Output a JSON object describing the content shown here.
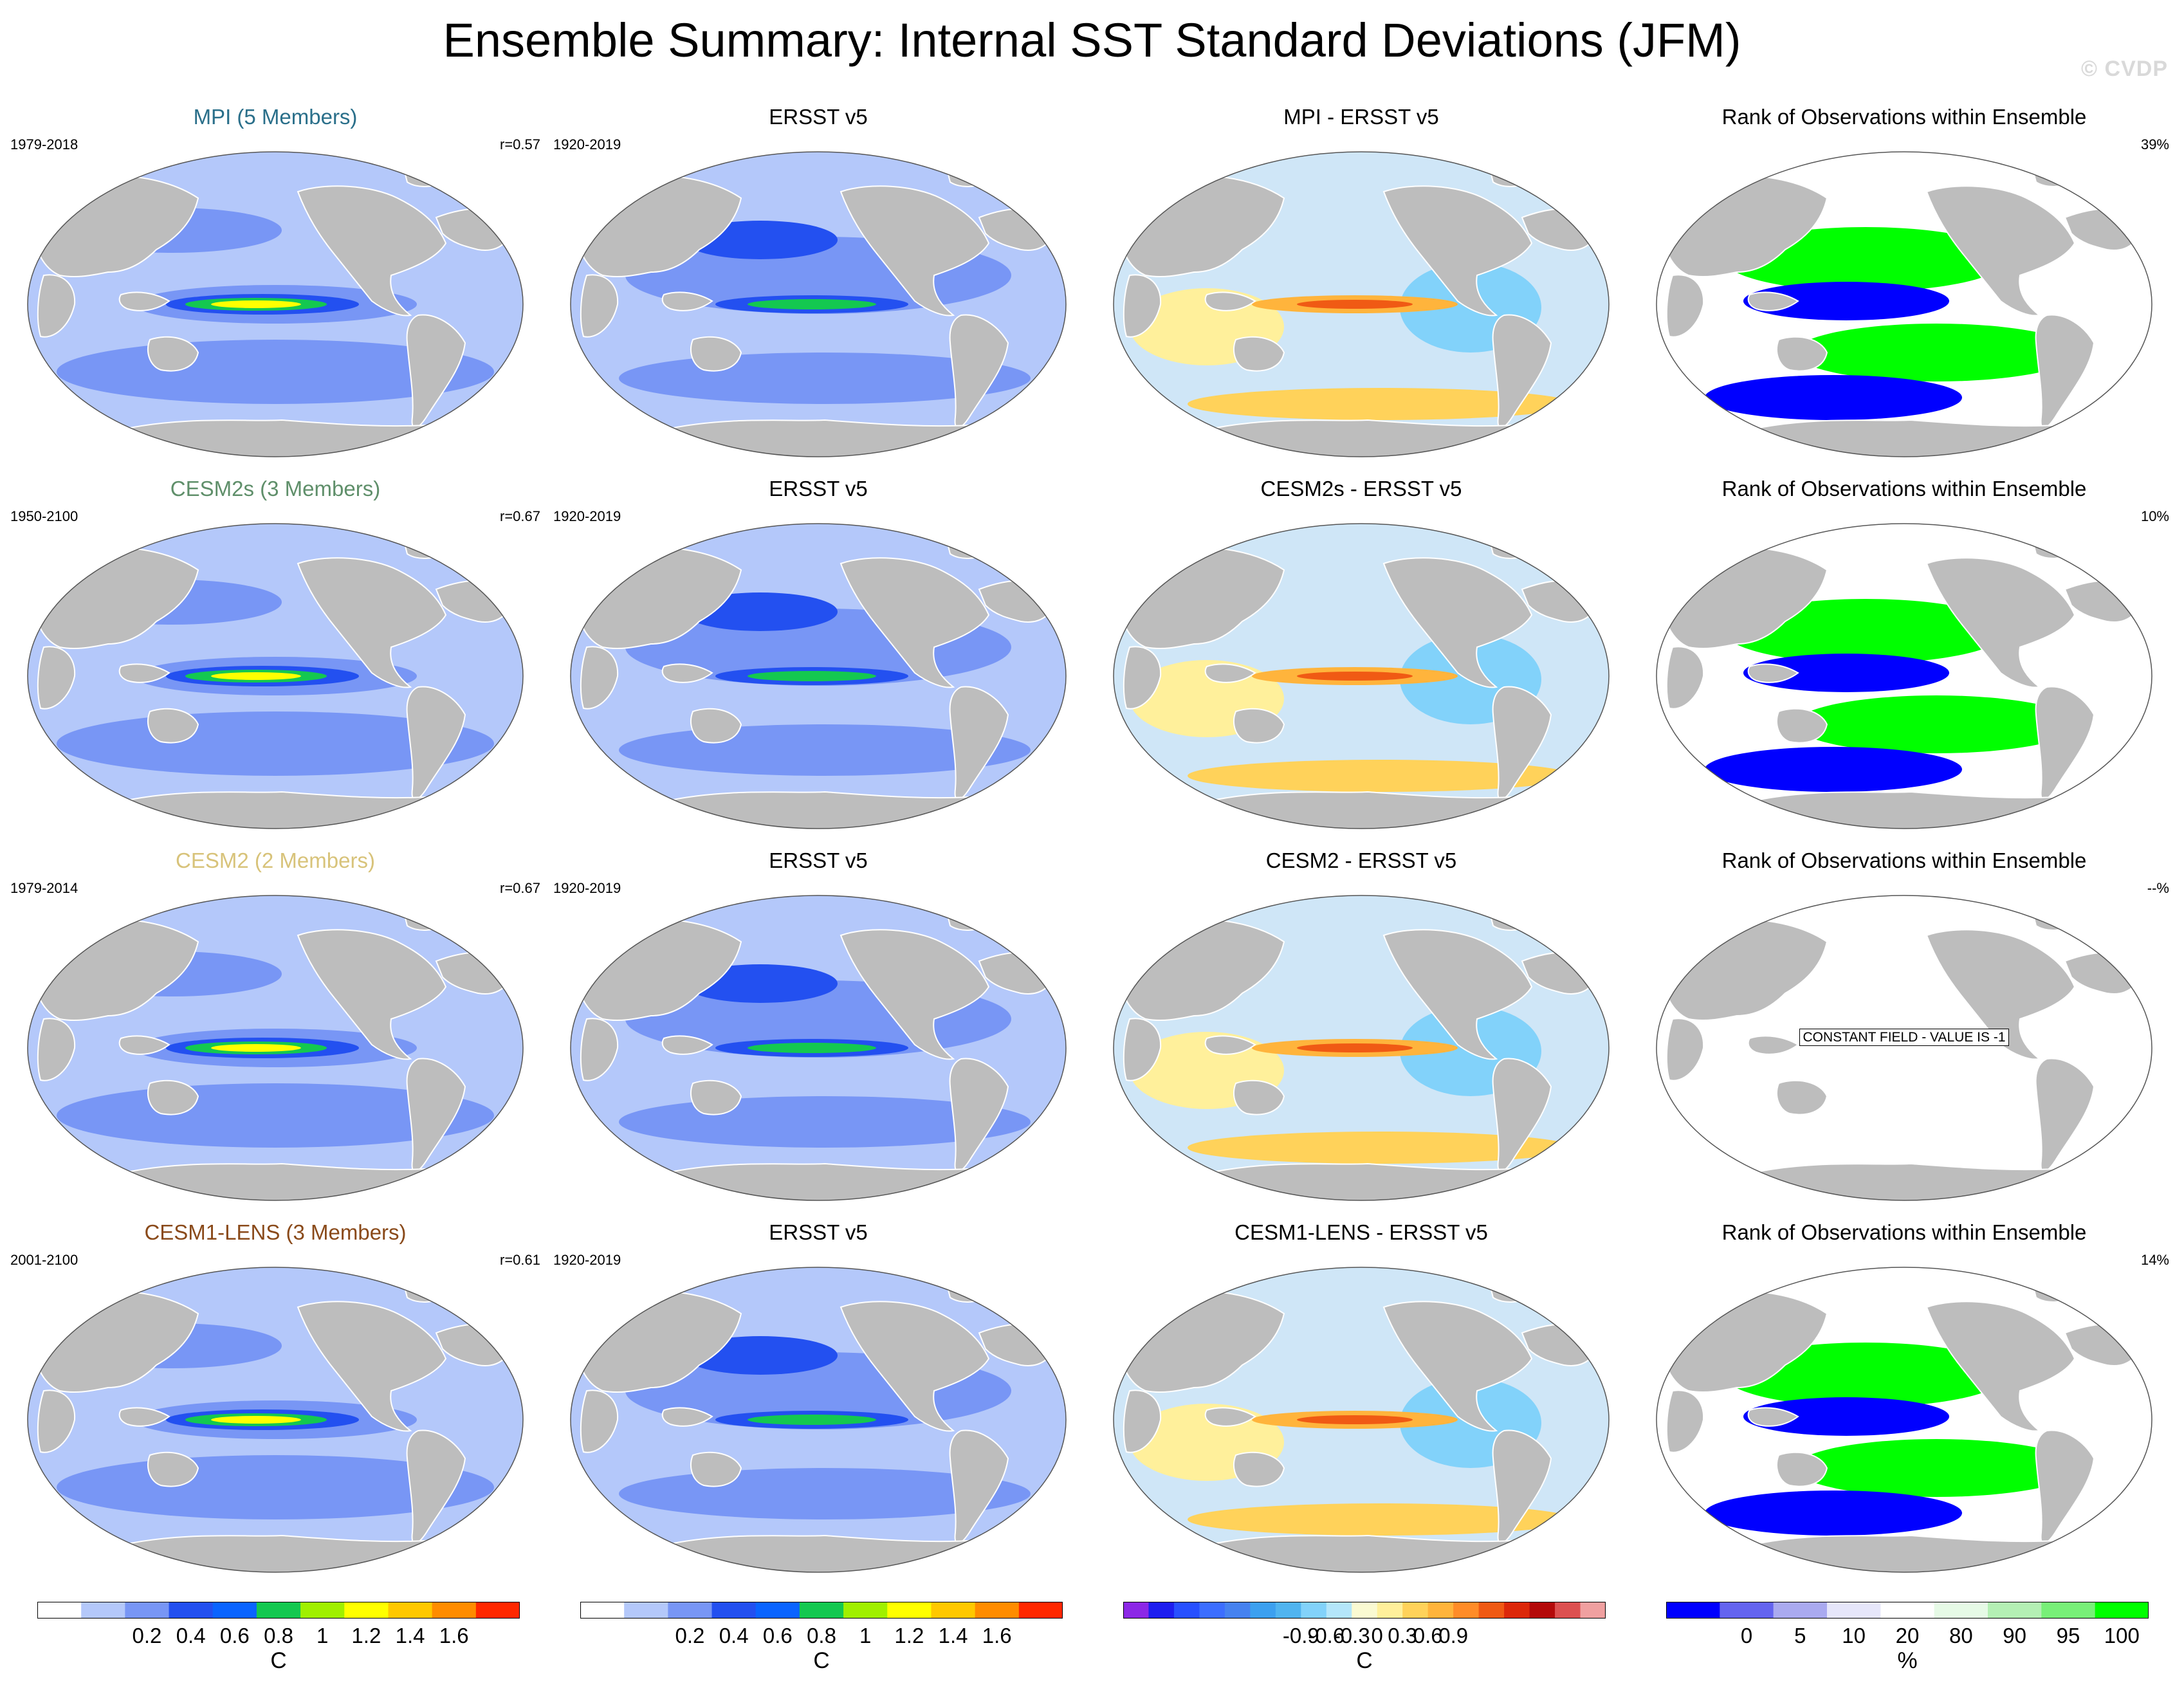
{
  "title": "Ensemble Summary: Internal SST Standard Deviations (JFM)",
  "watermark": "© CVDP",
  "rows": [
    {
      "model": {
        "title": "MPI (5 Members)",
        "title_color": "#2a6f8a",
        "years": "1979-2018",
        "r": "r=0.57"
      },
      "obs": {
        "title": "ERSST v5",
        "years": "1920-2019"
      },
      "diff": {
        "title": "MPI - ERSST v5"
      },
      "rank": {
        "title": "Rank of Observations within Ensemble",
        "percent": "39%"
      }
    },
    {
      "model": {
        "title": "CESM2s (3 Members)",
        "title_color": "#5f8f6a",
        "years": "1950-2100",
        "r": "r=0.67"
      },
      "obs": {
        "title": "ERSST v5",
        "years": "1920-2019"
      },
      "diff": {
        "title": "CESM2s - ERSST v5"
      },
      "rank": {
        "title": "Rank of Observations within Ensemble",
        "percent": "10%"
      }
    },
    {
      "model": {
        "title": "CESM2 (2 Members)",
        "title_color": "#d8c37a",
        "years": "1979-2014",
        "r": "r=0.67"
      },
      "obs": {
        "title": "ERSST v5",
        "years": "1920-2019"
      },
      "diff": {
        "title": "CESM2 - ERSST v5"
      },
      "rank": {
        "title": "Rank of Observations within Ensemble",
        "percent": "--%",
        "constant_label": "CONSTANT FIELD - VALUE IS -1"
      }
    },
    {
      "model": {
        "title": "CESM1-LENS (3 Members)",
        "title_color": "#8a4a1a",
        "years": "2001-2100",
        "r": "r=0.61"
      },
      "obs": {
        "title": "ERSST v5",
        "years": "1920-2019"
      },
      "diff": {
        "title": "CESM1-LENS - ERSST v5"
      },
      "rank": {
        "title": "Rank of Observations within Ensemble",
        "percent": "14%"
      }
    }
  ],
  "legends": {
    "stddev": {
      "unit": "C",
      "ticks": [
        "0.2",
        "0.4",
        "0.6",
        "0.8",
        "1",
        "1.2",
        "1.4",
        "1.6"
      ],
      "colors": [
        "#ffffff",
        "#b4c8fa",
        "#7896f5",
        "#2350f0",
        "#0a64ff",
        "#14c850",
        "#a0f000",
        "#ffff00",
        "#ffc800",
        "#ff8c00",
        "#ff2800"
      ]
    },
    "diff": {
      "unit": "C",
      "ticks": [
        "-0.9",
        "-0.6",
        "-0.3",
        "0",
        "0.3",
        "0.6",
        "0.9"
      ],
      "colors": [
        "#8c28e6",
        "#1e1ef0",
        "#2850ff",
        "#3c6eff",
        "#4682f0",
        "#3ca0f0",
        "#50b4f0",
        "#82d2fa",
        "#b4e6fa",
        "#fafad2",
        "#fff09b",
        "#ffd25a",
        "#ffb43c",
        "#ff8c28",
        "#f05a14",
        "#dc280a",
        "#b40a0a",
        "#dc5050",
        "#f0a0a0"
      ]
    },
    "rank": {
      "unit": "%",
      "ticks": [
        "0",
        "5",
        "10",
        "20",
        "80",
        "90",
        "95",
        "100"
      ],
      "colors": [
        "#0000ff",
        "#6464f0",
        "#aaaaf0",
        "#e6e6fa",
        "#ffffff",
        "#e6fae6",
        "#b4f0b4",
        "#78f078",
        "#00ff00"
      ]
    }
  },
  "colors": {
    "land": "#bdbdbd",
    "stddev_low": "#b4c8fa",
    "stddev_mid": "#7896f5",
    "diff_neutral": "#cfe6f7",
    "rank_high": "#00ff00",
    "rank_low": "#0000ff"
  }
}
